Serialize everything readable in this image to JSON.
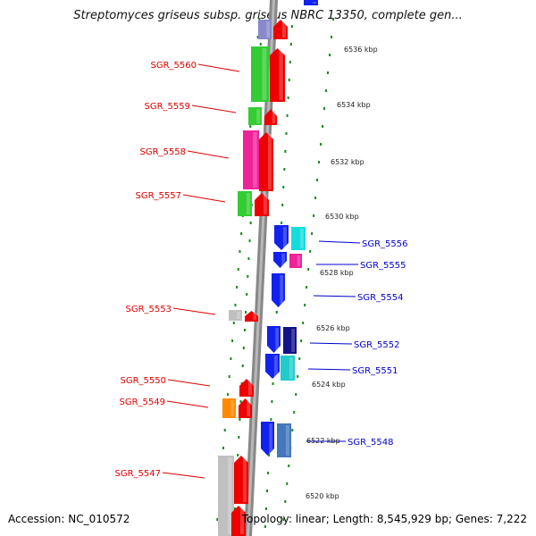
{
  "title": "Streptomyces griseus subsp. griseus NBRC 13350, complete gen...",
  "footer": {
    "accession_label": "Accession:",
    "accession": "NC_010572",
    "topology_label": "Topology:",
    "topology": "linear",
    "length_label": "Length:",
    "length": "8,545,929 bp",
    "genes_label": "Genes:",
    "genes": "7,222"
  },
  "scale_ticks": [
    "6536 kbp",
    "6534 kbp",
    "6532 kbp",
    "6530 kbp",
    "6528 kbp",
    "6526 kbp",
    "6524 kbp",
    "6522 kbp",
    "6520 kbp"
  ],
  "colors": {
    "left_label": "#dd0000",
    "right_label": "#0000cc",
    "backbone": "#888888",
    "track_dots": "#1a8a1a",
    "red": "#ee0000",
    "green": "#33cc33",
    "magenta": "#ee2299",
    "blue": "#1122ee",
    "navy": "#111188",
    "cyan": "#11dddd",
    "teal": "#22cccc",
    "steel": "#4477bb",
    "lavender": "#8888cc",
    "gray": "#c0c0c0",
    "orange": "#ff8800"
  },
  "left_genes": [
    "SGR_5560",
    "SGR_5559",
    "SGR_5558",
    "SGR_5557",
    "SGR_5553",
    "SGR_5550",
    "SGR_5549",
    "SGR_5547"
  ],
  "right_genes": [
    "SGR_5556",
    "SGR_5555",
    "SGR_5554",
    "SGR_5552",
    "SGR_5551",
    "SGR_5548"
  ]
}
